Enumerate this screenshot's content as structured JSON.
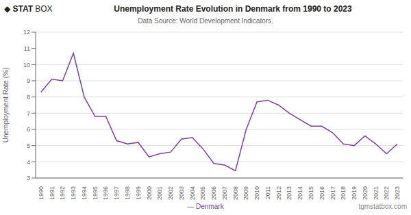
{
  "chart_data": {
    "type": "line",
    "title": "Unemployment Rate Evolution in Denmark from 1990 to 2023",
    "subtitle": "Data Source: World Development Indicators.",
    "ylabel": "Unemployment Rate (%)",
    "annotations": [
      "◆ STAT",
      "BOX",
      "— Denmark",
      "tgmstatbox.com"
    ],
    "color": "#7B3FA0",
    "grid": true,
    "x": [
      1990,
      1991,
      1992,
      1993,
      1994,
      1995,
      1996,
      1997,
      1998,
      1999,
      2000,
      2001,
      2002,
      2003,
      2004,
      2005,
      2006,
      2007,
      2008,
      2009,
      2010,
      2011,
      2012,
      2013,
      2014,
      2015,
      2016,
      2017,
      2018,
      2019,
      2020,
      2021,
      2022,
      2023
    ],
    "values": [
      8.3,
      9.1,
      9.0,
      10.7,
      8.0,
      6.8,
      6.8,
      5.3,
      5.1,
      5.2,
      4.3,
      4.5,
      4.6,
      5.4,
      5.5,
      4.8,
      3.9,
      3.8,
      3.45,
      6.0,
      7.7,
      7.8,
      7.5,
      7.0,
      6.6,
      6.2,
      6.2,
      5.8,
      5.1,
      5.0,
      5.6,
      5.1,
      4.5,
      5.1
    ],
    "xlim": [
      1989.5,
      2023.5
    ],
    "xticks": [
      1990,
      1991,
      1992,
      1993,
      1994,
      1995,
      1996,
      1997,
      1998,
      1999,
      2000,
      2001,
      2002,
      2003,
      2004,
      2005,
      2006,
      2007,
      2008,
      2009,
      2010,
      2011,
      2012,
      2013,
      2014,
      2015,
      2016,
      2017,
      2018,
      2019,
      2020,
      2021,
      2022,
      2023
    ],
    "ylim": [
      3,
      12
    ],
    "yticks": [
      3,
      4,
      5,
      6,
      7,
      8,
      9,
      10,
      11,
      12
    ]
  }
}
